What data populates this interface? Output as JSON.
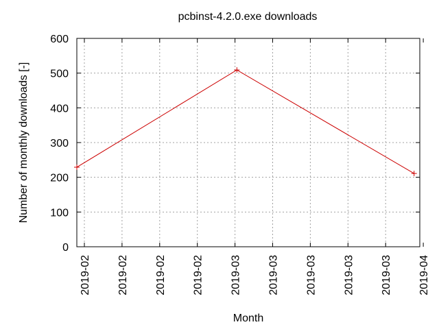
{
  "chart_data": {
    "type": "line",
    "title": "pcbinst-4.2.0.exe downloads",
    "xlabel": "Month",
    "ylabel": "Number of monthly downloads [-]",
    "x_tick_labels": [
      "2019-02",
      "2019-02",
      "2019-02",
      "2019-02",
      "2019-03",
      "2019-03",
      "2019-03",
      "2019-03",
      "2019-03",
      "2019-04"
    ],
    "y_ticks": [
      0,
      100,
      200,
      300,
      400,
      500,
      600
    ],
    "ylim": [
      0,
      600
    ],
    "grid": true,
    "series": [
      {
        "color": "#cc0000",
        "marker": "plus",
        "points": [
          {
            "x": "2019-01-31",
            "y": 229
          },
          {
            "x": "2019-02-28",
            "y": 509
          },
          {
            "x": "2019-03-31",
            "y": 211
          }
        ]
      }
    ]
  }
}
